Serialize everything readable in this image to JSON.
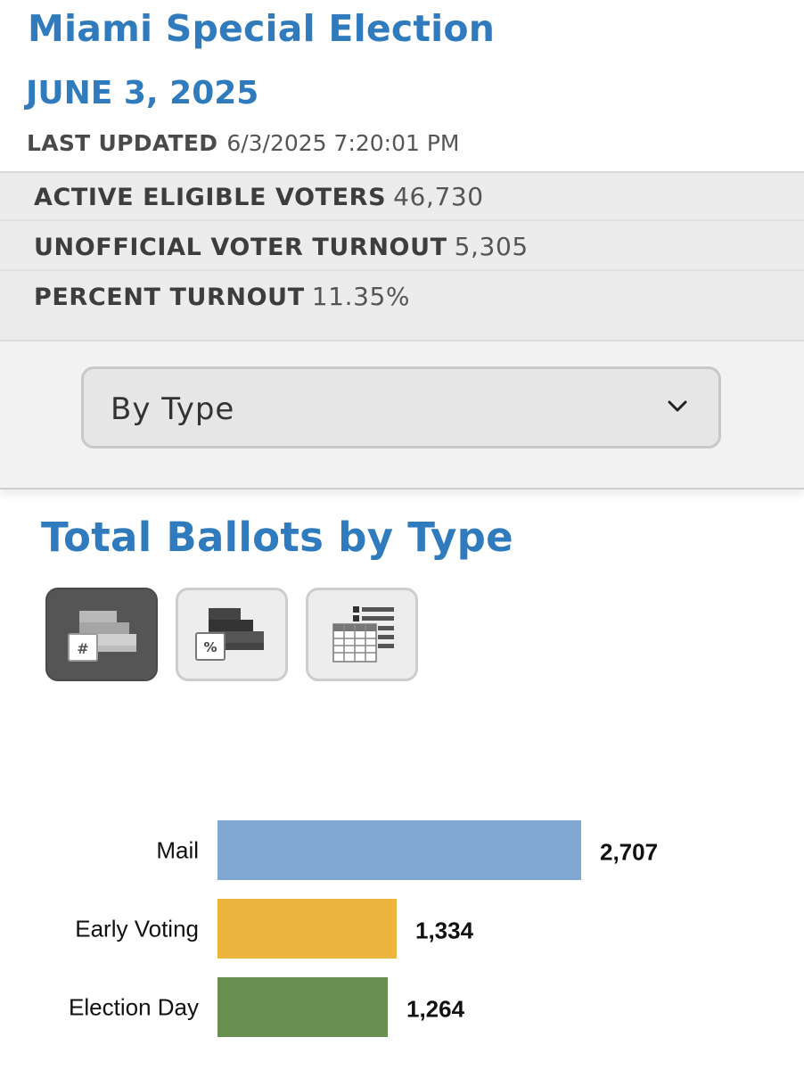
{
  "header": {
    "title": "Miami Special Election",
    "date": "JUNE 3, 2025",
    "last_updated_label": "LAST UPDATED",
    "last_updated_value": "6/3/2025 7:20:01 PM"
  },
  "stats": [
    {
      "label": "ACTIVE ELIGIBLE VOTERS",
      "value": "46,730"
    },
    {
      "label": "UNOFFICIAL VOTER TURNOUT",
      "value": "5,305"
    },
    {
      "label": "PERCENT TURNOUT",
      "value": "11.35%"
    }
  ],
  "view_selector": {
    "selected": "By Type",
    "icon": "chevron-down-icon"
  },
  "section": {
    "title": "Total Ballots by Type"
  },
  "view_buttons": [
    {
      "icon": "bar-count-icon",
      "glyph": "#",
      "active": true
    },
    {
      "icon": "bar-percent-icon",
      "glyph": "%",
      "active": false
    },
    {
      "icon": "table-view-icon",
      "active": false
    }
  ],
  "colors": {
    "accent": "#2f7bbd",
    "mail": "#80a8d2",
    "early_voting": "#ecb53d",
    "election_day": "#688f4f"
  },
  "chart_data": {
    "type": "bar",
    "orientation": "horizontal",
    "categories": [
      "Mail",
      "Early Voting",
      "Election Day"
    ],
    "values": [
      2707,
      1334,
      1264
    ],
    "value_labels": [
      "2,707",
      "1,334",
      "1,264"
    ],
    "colors": [
      "#80a8d2",
      "#ecb53d",
      "#688f4f"
    ],
    "title": "",
    "xlabel": "",
    "ylabel": "",
    "grid": false,
    "xlim": [
      0,
      2707
    ]
  }
}
